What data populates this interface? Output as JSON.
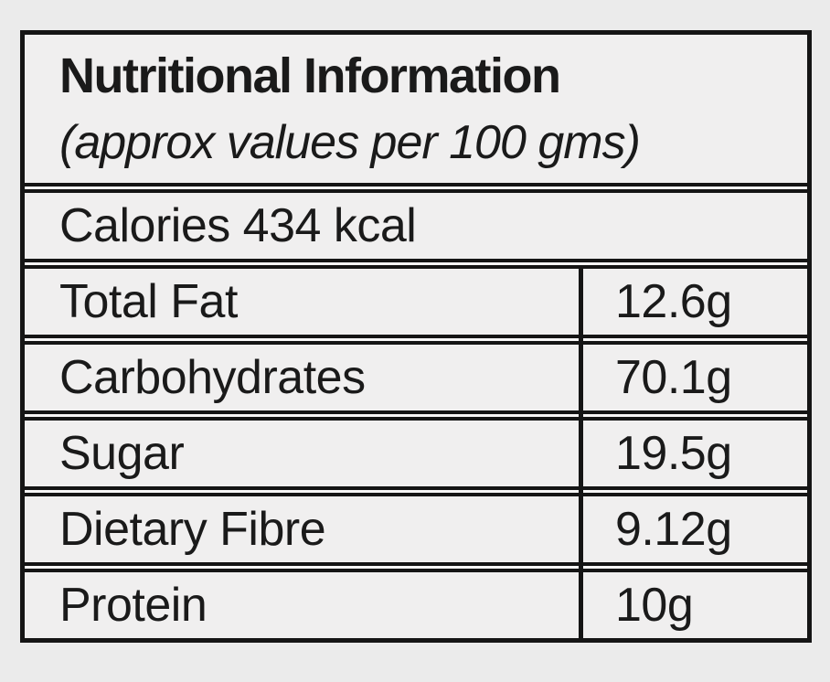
{
  "page": {
    "background_color": "#ebebeb",
    "cell_background_color": "#f0efef",
    "border_color": "#151515",
    "text_color": "#1a1a1a"
  },
  "table": {
    "title": "Nutritional Information",
    "subtitle": "(approx values per 100 gms)",
    "calories_line": "Calories 434 kcal",
    "rows": [
      {
        "label": "Total Fat",
        "value": "12.6g"
      },
      {
        "label": "Carbohydrates",
        "value": "70.1g"
      },
      {
        "label": "Sugar",
        "value": "19.5g"
      },
      {
        "label": "Dietary Fibre",
        "value": "9.12g"
      },
      {
        "label": "Protein",
        "value": "10g"
      }
    ]
  }
}
